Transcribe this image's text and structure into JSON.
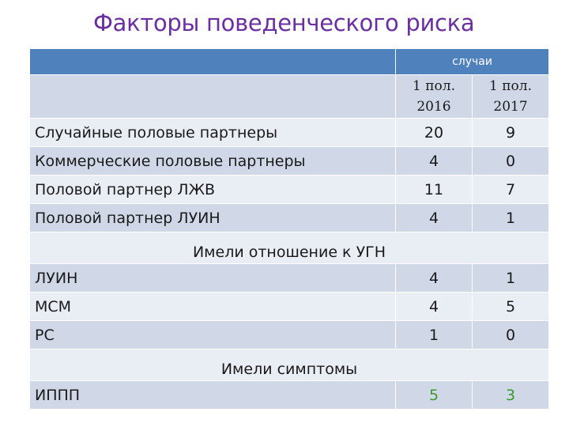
{
  "title": "Факторы поведенческого риска",
  "header": {
    "cases_label": "случаи",
    "col1": "1 пол. 2016",
    "col2": "1 пол. 2017"
  },
  "rows": [
    {
      "label": "Случайные половые партнеры",
      "v1": "20",
      "v2": "9"
    },
    {
      "label": "Коммерческие половые партнеры",
      "v1": "4",
      "v2": "0"
    },
    {
      "label": "Половой партнер ЛЖВ",
      "v1": "11",
      "v2": "7"
    },
    {
      "label": "Половой партнер ЛУИН",
      "v1": "4",
      "v2": "1"
    }
  ],
  "section1": "Имели отношение к УГН",
  "rows2": [
    {
      "label": "ЛУИН",
      "v1": "4",
      "v2": "1"
    },
    {
      "label": "МСМ",
      "v1": "4",
      "v2": "5"
    },
    {
      "label": "РС",
      "v1": "1",
      "v2": "0"
    }
  ],
  "section2": "Имели симптомы",
  "rows3": [
    {
      "label": "ИППП",
      "v1": "5",
      "v2": "3"
    }
  ],
  "colors": {
    "title": "#6b2fa1",
    "header": "#4f81bd",
    "row_dark": "#d0d8e8",
    "row_light": "#e9edf4",
    "highlight": "#3a9a2a"
  }
}
